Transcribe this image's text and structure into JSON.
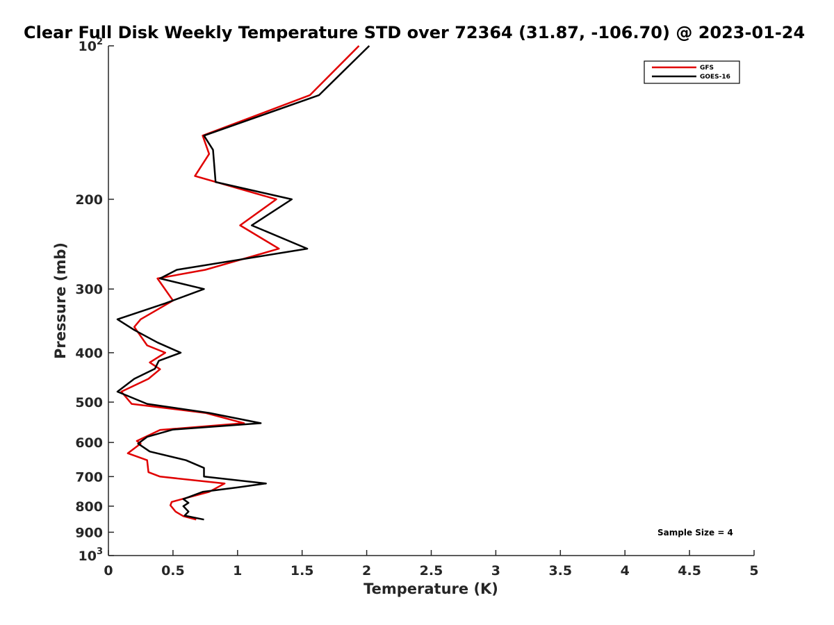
{
  "chart_data": {
    "type": "line",
    "title": "Clear Full Disk Weekly Temperature STD over 72364 (31.87, -106.70) @ 2023-01-24",
    "xlabel": "Temperature (K)",
    "ylabel": "Pressure (mb)",
    "xlim": [
      0,
      5
    ],
    "ylim": [
      100,
      1000
    ],
    "y_scale": "log",
    "y_reversed": true,
    "grid": false,
    "legend_position": "top-right",
    "x_ticks": [
      "0",
      "0.5",
      "1",
      "1.5",
      "2",
      "2.5",
      "3",
      "3.5",
      "4",
      "4.5",
      "5"
    ],
    "y_ticks": [
      {
        "value": 100,
        "base": "10",
        "exp": "2"
      },
      {
        "value": 200,
        "label": "200"
      },
      {
        "value": 300,
        "label": "300"
      },
      {
        "value": 400,
        "label": "400"
      },
      {
        "value": 500,
        "label": "500"
      },
      {
        "value": 600,
        "label": "600"
      },
      {
        "value": 700,
        "label": "700"
      },
      {
        "value": 800,
        "label": "800"
      },
      {
        "value": 900,
        "label": "900"
      },
      {
        "value": 1000,
        "base": "10",
        "exp": "3"
      }
    ],
    "annotation": "Sample Size = 4",
    "series": [
      {
        "name": "GFS",
        "color": "#e00000",
        "points": [
          [
            1.94,
            100
          ],
          [
            1.56,
            125
          ],
          [
            0.73,
            150
          ],
          [
            0.78,
            163
          ],
          [
            0.67,
            180
          ],
          [
            1.3,
            200
          ],
          [
            1.02,
            225
          ],
          [
            1.32,
            250
          ],
          [
            0.75,
            275
          ],
          [
            0.38,
            286
          ],
          [
            0.5,
            316
          ],
          [
            0.25,
            344
          ],
          [
            0.2,
            356
          ],
          [
            0.3,
            387
          ],
          [
            0.44,
            400
          ],
          [
            0.32,
            418
          ],
          [
            0.4,
            431
          ],
          [
            0.31,
            450
          ],
          [
            0.1,
            477
          ],
          [
            0.18,
            504
          ],
          [
            0.75,
            525
          ],
          [
            1.05,
            550
          ],
          [
            0.4,
            567
          ],
          [
            0.22,
            596
          ],
          [
            0.25,
            603
          ],
          [
            0.15,
            630
          ],
          [
            0.3,
            650
          ],
          [
            0.31,
            686
          ],
          [
            0.4,
            700
          ],
          [
            0.9,
            722
          ],
          [
            0.78,
            750
          ],
          [
            0.57,
            775
          ],
          [
            0.49,
            785
          ],
          [
            0.48,
            797
          ],
          [
            0.52,
            820
          ],
          [
            0.58,
            837
          ],
          [
            0.68,
            850
          ]
        ]
      },
      {
        "name": "GOES-16",
        "color": "#000000",
        "points": [
          [
            2.02,
            100
          ],
          [
            1.63,
            125
          ],
          [
            0.74,
            150
          ],
          [
            0.81,
            160
          ],
          [
            0.83,
            185
          ],
          [
            1.42,
            200
          ],
          [
            1.11,
            225
          ],
          [
            1.54,
            250
          ],
          [
            0.53,
            275
          ],
          [
            0.4,
            286
          ],
          [
            0.74,
            300
          ],
          [
            0.44,
            320
          ],
          [
            0.07,
            344
          ],
          [
            0.2,
            361
          ],
          [
            0.38,
            382
          ],
          [
            0.56,
            400
          ],
          [
            0.39,
            415
          ],
          [
            0.36,
            430
          ],
          [
            0.2,
            450
          ],
          [
            0.07,
            477
          ],
          [
            0.3,
            504
          ],
          [
            0.78,
            525
          ],
          [
            1.18,
            550
          ],
          [
            0.5,
            566
          ],
          [
            0.3,
            585
          ],
          [
            0.23,
            603
          ],
          [
            0.32,
            625
          ],
          [
            0.6,
            650
          ],
          [
            0.74,
            673
          ],
          [
            0.74,
            700
          ],
          [
            1.22,
            722
          ],
          [
            1.0,
            735
          ],
          [
            0.73,
            750
          ],
          [
            0.58,
            775
          ],
          [
            0.62,
            788
          ],
          [
            0.58,
            800
          ],
          [
            0.62,
            820
          ],
          [
            0.59,
            835
          ],
          [
            0.74,
            850
          ]
        ]
      }
    ]
  }
}
